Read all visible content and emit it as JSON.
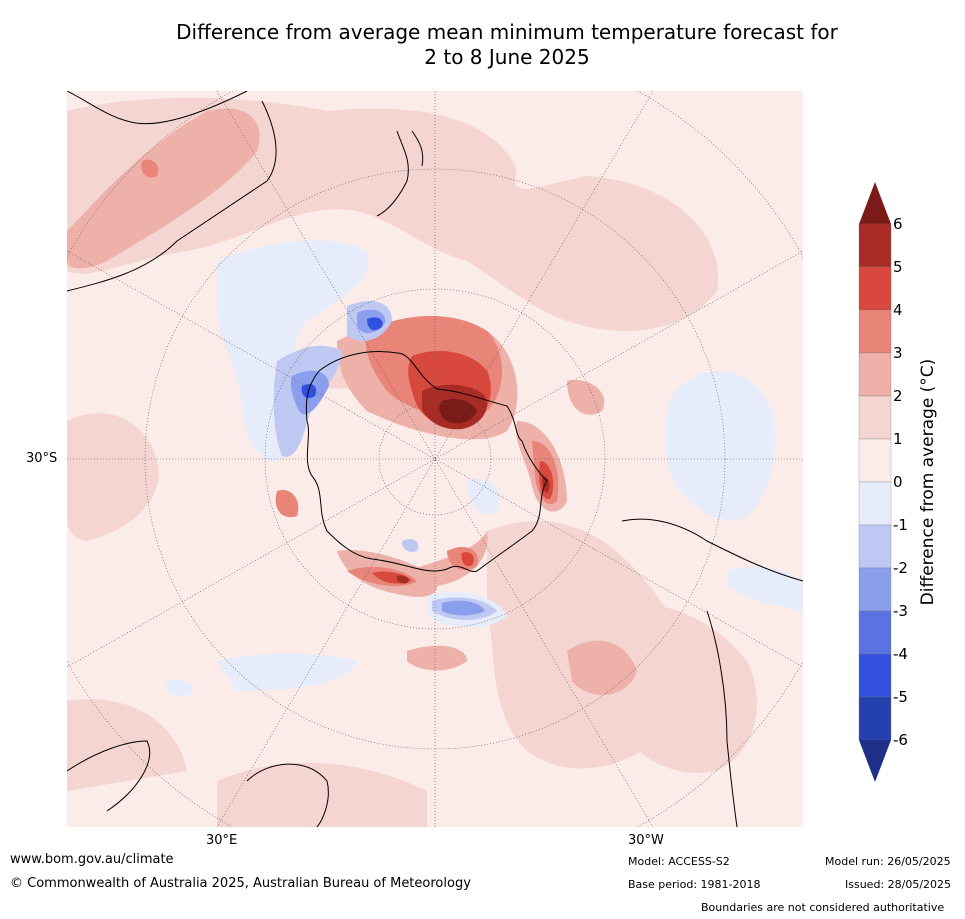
{
  "title_line1": "Difference from average mean minimum temperature forecast for",
  "title_line2": "2 to 8 June 2025",
  "map": {
    "lat_label": "30°S",
    "lon_label_east": "30°E",
    "lon_label_west": "30°W"
  },
  "colorbar": {
    "title": "Difference from average (°C)",
    "ticks": [
      "6",
      "5",
      "4",
      "3",
      "2",
      "1",
      "0",
      "-1",
      "-2",
      "-3",
      "-4",
      "-5",
      "-6"
    ],
    "colors": [
      "#7a1b18",
      "#a92b25",
      "#d9483d",
      "#e88478",
      "#eeb1a9",
      "#f4d5d1",
      "#fbecea",
      "#e7ecfa",
      "#bfc8f2",
      "#8b9ded",
      "#5a72e2",
      "#3250e0",
      "#2441b0",
      "#1d2f86"
    ]
  },
  "footer": {
    "url": "www.bom.gov.au/climate",
    "copyright": "© Commonwealth of Australia 2025, Australian Bureau of Meteorology",
    "model": "Model: ACCESS-S2",
    "base_period": "Base period: 1981-2018",
    "model_run": "Model run: 26/05/2025",
    "issued": "Issued: 28/05/2025",
    "disclaimer": "Boundaries are not considered authoritative"
  }
}
